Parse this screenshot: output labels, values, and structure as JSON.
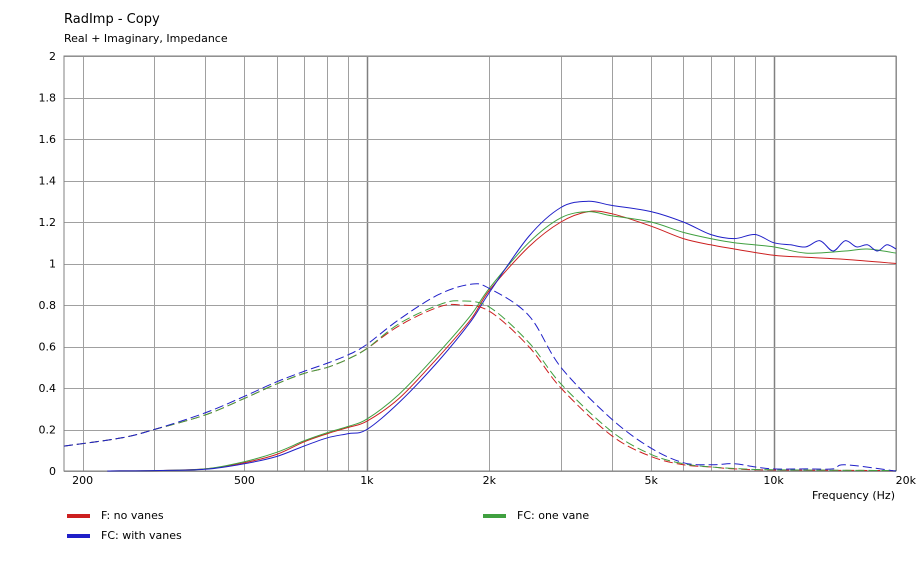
{
  "chart_data": {
    "type": "line",
    "title": "RadImp - Copy",
    "subtitle": "Real + Imaginary, Impedance",
    "xlabel": "Frequency  (Hz)",
    "ylabel": "",
    "x_scale": "log",
    "xlim": [
      180,
      20000
    ],
    "ylim": [
      0,
      2
    ],
    "grid": true,
    "legend_position": "bottom",
    "x_ticks": [
      {
        "value": 200,
        "label": "200"
      },
      {
        "value": 500,
        "label": "500"
      },
      {
        "value": 1000,
        "label": "1k"
      },
      {
        "value": 2000,
        "label": "2k"
      },
      {
        "value": 5000,
        "label": "5k"
      },
      {
        "value": 10000,
        "label": "10k"
      },
      {
        "value": 20000,
        "label": "20k"
      }
    ],
    "y_ticks": [
      {
        "value": 0,
        "label": "0"
      },
      {
        "value": 0.2,
        "label": "0.2"
      },
      {
        "value": 0.4,
        "label": "0.4"
      },
      {
        "value": 0.6,
        "label": "0.6"
      },
      {
        "value": 0.8,
        "label": "0.8"
      },
      {
        "value": 1,
        "label": "1"
      },
      {
        "value": 1.2,
        "label": "1.2"
      },
      {
        "value": 1.4,
        "label": "1.4"
      },
      {
        "value": 1.6,
        "label": "1.6"
      },
      {
        "value": 1.8,
        "label": "1.8"
      },
      {
        "value": 2,
        "label": "2"
      }
    ],
    "x_grid": [
      200,
      300,
      400,
      500,
      600,
      700,
      800,
      900,
      1000,
      2000,
      3000,
      4000,
      5000,
      6000,
      7000,
      8000,
      9000,
      10000,
      20000
    ],
    "legend": [
      {
        "name": "F: no vanes",
        "color": "#cc2020"
      },
      {
        "name": "FC: one vane",
        "color": "#40a040"
      },
      {
        "name": "FC: with vanes",
        "color": "#2020c8"
      }
    ],
    "series": [
      {
        "name": "F: no vanes",
        "component": "real",
        "color": "#cc2020",
        "dash": false,
        "x": [
          230,
          300,
          400,
          500,
          600,
          700,
          800,
          900,
          1000,
          1200,
          1500,
          1800,
          2000,
          2500,
          3000,
          3500,
          4000,
          5000,
          6000,
          7000,
          8000,
          10000,
          12000,
          15000,
          20000
        ],
        "y": [
          0.0,
          0.002,
          0.01,
          0.04,
          0.08,
          0.14,
          0.18,
          0.21,
          0.24,
          0.35,
          0.55,
          0.73,
          0.87,
          1.08,
          1.2,
          1.25,
          1.24,
          1.18,
          1.12,
          1.09,
          1.07,
          1.04,
          1.03,
          1.02,
          1.0
        ]
      },
      {
        "name": "FC: one vane",
        "component": "real",
        "color": "#40a040",
        "dash": false,
        "x": [
          230,
          300,
          400,
          500,
          600,
          700,
          800,
          900,
          1000,
          1200,
          1500,
          1800,
          2000,
          2500,
          3000,
          3500,
          4000,
          5000,
          6000,
          7000,
          8000,
          10000,
          12000,
          15000,
          17000,
          20000
        ],
        "y": [
          0.0,
          0.002,
          0.01,
          0.045,
          0.09,
          0.145,
          0.185,
          0.215,
          0.25,
          0.37,
          0.57,
          0.75,
          0.88,
          1.1,
          1.22,
          1.25,
          1.23,
          1.2,
          1.15,
          1.12,
          1.1,
          1.08,
          1.05,
          1.06,
          1.07,
          1.05
        ]
      },
      {
        "name": "FC: with vanes",
        "component": "real",
        "color": "#2020c8",
        "dash": false,
        "x": [
          230,
          300,
          400,
          500,
          600,
          700,
          800,
          900,
          1000,
          1200,
          1500,
          1800,
          2000,
          2500,
          3000,
          3500,
          4000,
          5000,
          6000,
          7000,
          8000,
          9000,
          10000,
          11000,
          12000,
          13000,
          14000,
          15000,
          16000,
          17000,
          18000,
          19000,
          20000
        ],
        "y": [
          0.0,
          0.002,
          0.008,
          0.035,
          0.07,
          0.12,
          0.16,
          0.18,
          0.2,
          0.33,
          0.53,
          0.72,
          0.86,
          1.13,
          1.27,
          1.3,
          1.28,
          1.25,
          1.2,
          1.14,
          1.12,
          1.14,
          1.1,
          1.09,
          1.08,
          1.11,
          1.06,
          1.11,
          1.08,
          1.09,
          1.06,
          1.09,
          1.07
        ]
      },
      {
        "name": "F: no vanes",
        "component": "imaginary",
        "color": "#cc2020",
        "dash": true,
        "x": [
          180,
          250,
          300,
          400,
          500,
          600,
          700,
          800,
          900,
          1000,
          1200,
          1500,
          1700,
          2000,
          2500,
          3000,
          4000,
          5000,
          6000,
          7000,
          8000,
          10000,
          20000
        ],
        "y": [
          0.12,
          0.16,
          0.2,
          0.27,
          0.35,
          0.42,
          0.47,
          0.5,
          0.54,
          0.59,
          0.7,
          0.79,
          0.8,
          0.77,
          0.6,
          0.4,
          0.17,
          0.07,
          0.03,
          0.02,
          0.01,
          0.005,
          0.002
        ]
      },
      {
        "name": "FC: one vane",
        "component": "imaginary",
        "color": "#40a040",
        "dash": true,
        "x": [
          180,
          250,
          300,
          400,
          500,
          600,
          700,
          800,
          900,
          1000,
          1200,
          1500,
          1700,
          2000,
          2500,
          3000,
          4000,
          5000,
          6000,
          7000,
          8000,
          10000,
          20000
        ],
        "y": [
          0.12,
          0.16,
          0.2,
          0.27,
          0.35,
          0.42,
          0.47,
          0.5,
          0.54,
          0.59,
          0.71,
          0.8,
          0.82,
          0.79,
          0.62,
          0.42,
          0.19,
          0.08,
          0.035,
          0.02,
          0.012,
          0.006,
          0.002
        ]
      },
      {
        "name": "FC: with vanes",
        "component": "imaginary",
        "color": "#2020c8",
        "dash": true,
        "x": [
          180,
          250,
          300,
          400,
          500,
          600,
          700,
          800,
          900,
          1000,
          1200,
          1500,
          1800,
          2000,
          2500,
          3000,
          4000,
          5000,
          6000,
          7000,
          8000,
          9000,
          10000,
          12000,
          14000,
          15000,
          20000
        ],
        "y": [
          0.12,
          0.16,
          0.2,
          0.28,
          0.36,
          0.43,
          0.48,
          0.52,
          0.56,
          0.61,
          0.73,
          0.85,
          0.9,
          0.88,
          0.75,
          0.5,
          0.25,
          0.11,
          0.04,
          0.03,
          0.035,
          0.02,
          0.01,
          0.01,
          0.01,
          0.03,
          0.0
        ]
      }
    ]
  }
}
